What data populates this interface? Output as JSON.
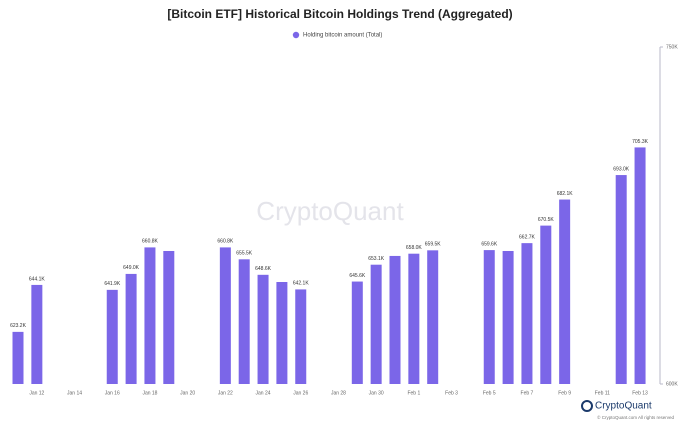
{
  "chart_data": {
    "type": "bar",
    "title": "[Bitcoin ETF] Historical Bitcoin Holdings Trend (Aggregated)",
    "watermark": "CryptoQuant",
    "logo": "CryptoQuant",
    "copyright": "© CryptoQuant.com All rights reserved",
    "categories": [
      null,
      "Jan 12",
      null,
      "Jan 14",
      null,
      "Jan 16",
      null,
      "Jan 18",
      null,
      "Jan 20",
      null,
      "Jan 22",
      null,
      "Jan 24",
      null,
      "Jan 26",
      null,
      "Jan 28",
      null,
      "Jan 30",
      null,
      "Feb 1",
      null,
      "Feb 3",
      null,
      "Feb 5",
      null,
      "Feb 7",
      null,
      "Feb 9",
      null,
      "Feb 11",
      null,
      "Feb 13"
    ],
    "series": [
      {
        "name": "Holding bitcoin amount (Total)",
        "color": "#7b66e8",
        "values": [
          623.2,
          644.1,
          null,
          null,
          null,
          641.9,
          649.0,
          660.8,
          659.2,
          null,
          null,
          660.8,
          655.5,
          648.6,
          645.4,
          642.1,
          null,
          null,
          645.6,
          653.1,
          657.0,
          658.0,
          659.5,
          null,
          null,
          659.6,
          659.2,
          662.7,
          670.5,
          682.1,
          null,
          null,
          693.0,
          705.3
        ],
        "value_labels": [
          "623.2K",
          "644.1K",
          null,
          null,
          null,
          "641.9K",
          "649.0K",
          "660.8K",
          null,
          null,
          null,
          "660.8K",
          "655.5K",
          "648.6K",
          null,
          "642.1K",
          null,
          null,
          "645.6K",
          "653.1K",
          null,
          "658.0K",
          "659.5K",
          null,
          null,
          "659.6K",
          null,
          "662.7K",
          "670.5K",
          "682.1K",
          null,
          null,
          "693.0K",
          "705.3K"
        ]
      }
    ],
    "ylim": [
      600,
      750
    ],
    "yticks": [
      {
        "value": 600,
        "label": "600K"
      },
      {
        "value": 750,
        "label": "750K"
      }
    ],
    "y_axis_side": "right"
  }
}
